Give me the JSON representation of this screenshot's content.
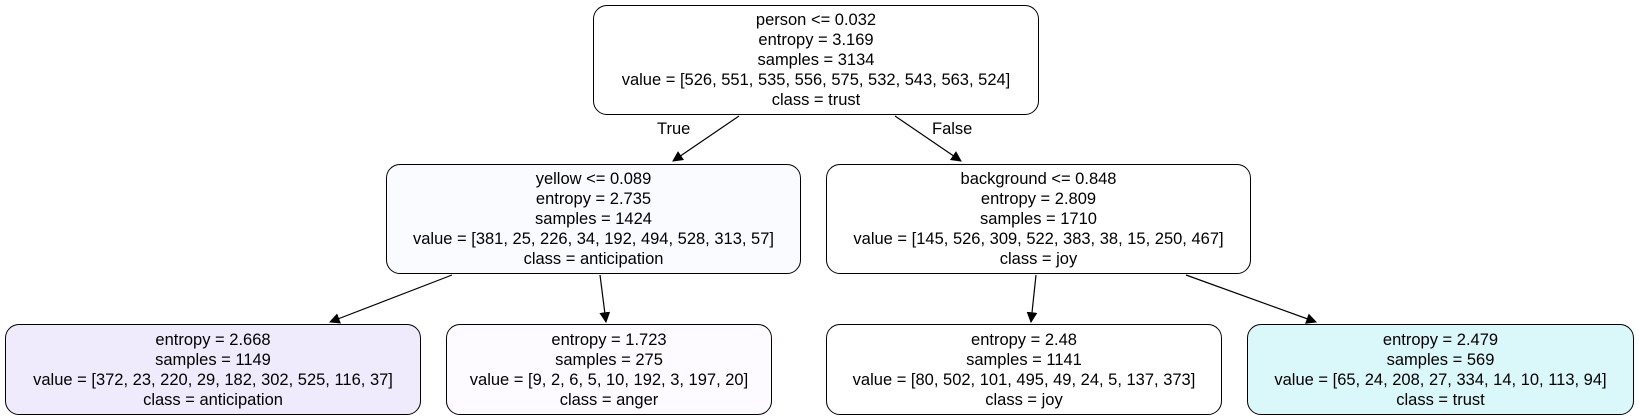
{
  "nodes": {
    "root": {
      "split": "person <= 0.032",
      "entropy": "entropy = 3.169",
      "samples": "samples = 3134",
      "value": "value = [526, 551, 535, 556, 575, 532, 543, 563, 524]",
      "class": "class = trust",
      "fill": "#ffffff"
    },
    "left": {
      "split": "yellow <= 0.089",
      "entropy": "entropy = 2.735",
      "samples": "samples = 1424",
      "value": "value = [381, 25, 226, 34, 192, 494, 528, 313, 57]",
      "class": "class = anticipation",
      "fill": "#fafbff"
    },
    "right": {
      "split": "background <= 0.848",
      "entropy": "entropy = 2.809",
      "samples": "samples = 1710",
      "value": "value = [145, 526, 309, 522, 383, 38, 15, 250, 467]",
      "class": "class = joy",
      "fill": "#ffffff"
    },
    "leaf_ll": {
      "entropy": "entropy = 2.668",
      "samples": "samples = 1149",
      "value": "value = [372, 23, 220, 29, 182, 302, 525, 116, 37]",
      "class": "class = anticipation",
      "fill": "#f0ebfc"
    },
    "leaf_lr": {
      "entropy": "entropy = 1.723",
      "samples": "samples = 275",
      "value": "value = [9, 2, 6, 5, 10, 192, 3, 197, 20]",
      "class": "class = anger",
      "fill": "#fdfbff"
    },
    "leaf_rl": {
      "entropy": "entropy = 2.48",
      "samples": "samples = 1141",
      "value": "value = [80, 502, 101, 495, 49, 24, 5, 137, 373]",
      "class": "class = joy",
      "fill": "#ffffff"
    },
    "leaf_rr": {
      "entropy": "entropy = 2.479",
      "samples": "samples = 569",
      "value": "value = [65, 24, 208, 27, 334, 14, 10, 113, 94]",
      "class": "class = trust",
      "fill": "#daf7f9"
    }
  },
  "edges": {
    "true_label": "True",
    "false_label": "False"
  },
  "colors": {
    "stroke": "#000000",
    "background": "#ffffff"
  }
}
